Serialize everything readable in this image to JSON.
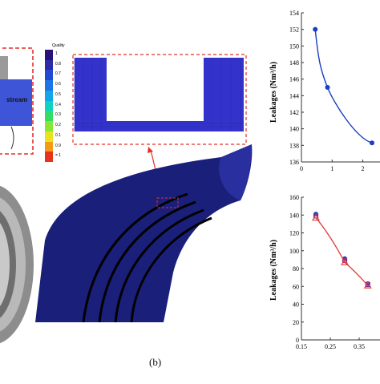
{
  "figure": {
    "caption": "(b)",
    "left_panel": {
      "stream_label": "stream"
    },
    "legend": {
      "title": "Quality",
      "labels": [
        "1",
        "0.8",
        "0.7",
        "0.6",
        "0.5",
        "0.4",
        "0.3",
        "0.2",
        "0.1",
        "0.9",
        "= 1"
      ],
      "colors": [
        "#2b0f7d",
        "#2c2ca8",
        "#2348d1",
        "#1e73e8",
        "#10a6e8",
        "#0ed2c6",
        "#31dd66",
        "#8ae634",
        "#e9e31f",
        "#f59a17",
        "#e5341b"
      ]
    },
    "mesh": {
      "detail_color": "#3333cc",
      "body_color": "#1a1f7a",
      "annotation_color": "#e0302c"
    }
  },
  "chart_data": [
    {
      "type": "line",
      "title": "",
      "xlabel": "",
      "ylabel": "Leakages (Nm³/h)",
      "ylim": [
        136,
        154
      ],
      "yticks": [
        136,
        138,
        140,
        142,
        144,
        146,
        148,
        150,
        152,
        154
      ],
      "xticks_visible": [
        "0",
        "1",
        "2"
      ],
      "xlim_visible": [
        0,
        2.3
      ],
      "series": [
        {
          "color": "#1a3fbf",
          "x": [
            0.45,
            0.85,
            2.3
          ],
          "y": [
            152,
            145,
            138.3
          ]
        }
      ]
    },
    {
      "type": "line",
      "title": "",
      "xlabel": "",
      "ylabel": "Leakages (Nm³/h)",
      "ylim": [
        0,
        160
      ],
      "yticks": [
        0,
        20,
        40,
        60,
        80,
        100,
        120,
        140,
        160
      ],
      "xticks_visible": [
        "0.15",
        "0.25",
        "0.35"
      ],
      "xlim_visible": [
        0.15,
        0.4
      ],
      "series": [
        {
          "color": "#1a3fbf",
          "marker": "circle",
          "x": [
            0.2,
            0.3,
            0.38
          ],
          "y": [
            141,
            91,
            63
          ]
        },
        {
          "color": "#7a2f9a",
          "marker": "square",
          "x": [
            0.2,
            0.3,
            0.38
          ],
          "y": [
            139,
            89,
            62
          ]
        },
        {
          "color": "#e03b36",
          "marker": "triangle",
          "x": [
            0.2,
            0.3,
            0.38
          ],
          "y": [
            137,
            87,
            61
          ]
        }
      ]
    }
  ]
}
